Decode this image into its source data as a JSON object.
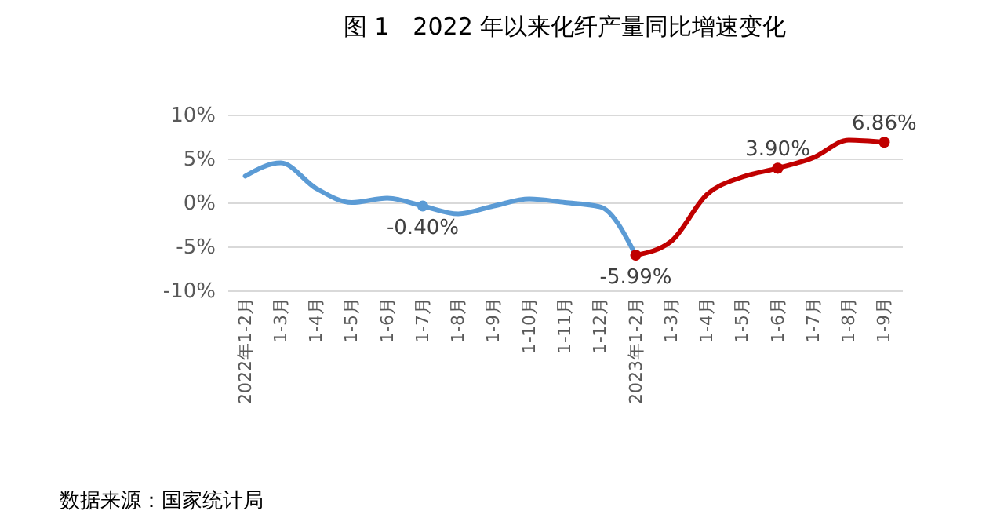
{
  "chart_data": {
    "type": "line",
    "title": "图 1　2022 年以来化纤产量同比增速变化",
    "categories": [
      "2022年1-2月",
      "1-3月",
      "1-4月",
      "1-5月",
      "1-6月",
      "1-7月",
      "1-8月",
      "1-9月",
      "1-10月",
      "1-11月",
      "1-12月",
      "2023年1-2月",
      "1-3月",
      "1-4月",
      "1-5月",
      "1-6月",
      "1-7月",
      "1-8月",
      "1-9月"
    ],
    "series": [
      {
        "color": "#5b9bd5",
        "values": [
          3.0,
          4.5,
          1.6,
          0.0,
          0.5,
          -0.4,
          -1.3,
          -0.4,
          0.4,
          0.0,
          -0.5,
          -5.99,
          null,
          null,
          null,
          null,
          null,
          null,
          null
        ],
        "value_labels": [
          null,
          null,
          null,
          null,
          null,
          "-0.40%",
          null,
          null,
          null,
          null,
          null,
          null,
          null,
          null,
          null,
          null,
          null,
          null,
          null
        ]
      },
      {
        "color": "#c00000",
        "values": [
          null,
          null,
          null,
          null,
          null,
          null,
          null,
          null,
          null,
          null,
          null,
          -5.99,
          -4.4,
          0.9,
          2.9,
          3.9,
          5.1,
          7.1,
          6.86
        ],
        "value_labels": [
          null,
          null,
          null,
          null,
          null,
          null,
          null,
          null,
          null,
          null,
          null,
          "-5.99%",
          null,
          null,
          null,
          "3.90%",
          null,
          null,
          "6.86%"
        ]
      }
    ],
    "ylim": [
      -10,
      10
    ],
    "yticks": [
      {
        "value": -10,
        "label": "-10%"
      },
      {
        "value": -5,
        "label": "-5%"
      },
      {
        "value": 0,
        "label": "0%"
      },
      {
        "value": 5,
        "label": "5%"
      },
      {
        "value": 10,
        "label": "10%"
      }
    ],
    "grid": "y",
    "annotations": [
      "数据来源：国家统计局"
    ]
  }
}
